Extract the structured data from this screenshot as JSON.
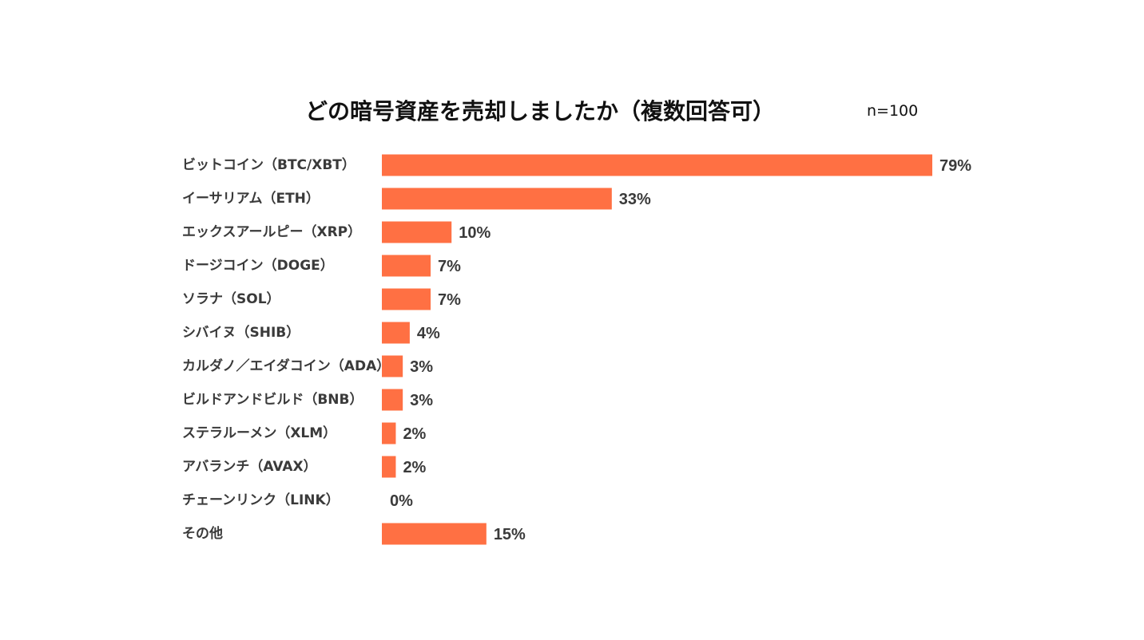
{
  "chart_data": {
    "type": "bar",
    "orientation": "horizontal",
    "title": "どの暗号資産を売却しましたか（複数回答可）",
    "sample_size": "n=100",
    "bar_color": "#FF7043",
    "label_color": "#3a3a3a",
    "value_suffix": "%",
    "xlim": [
      0,
      79
    ],
    "categories": [
      "ビットコイン（BTC/XBT）",
      "イーサリアム（ETH）",
      "エックスアールピー（XRP）",
      "ドージコイン（DOGE）",
      "ソラナ（SOL）",
      "シバイヌ（SHIB）",
      "カルダノ／エイダコイン（ADA）",
      "ビルドアンドビルド（BNB）",
      "ステラルーメン（XLM）",
      "アバランチ（AVAX）",
      "チェーンリンク（LINK）",
      "その他"
    ],
    "values": [
      79,
      33,
      10,
      7,
      7,
      4,
      3,
      3,
      2,
      2,
      0,
      15
    ],
    "value_labels": [
      "79%",
      "33%",
      "10%",
      "7%",
      "7%",
      "4%",
      "3%",
      "3%",
      "2%",
      "2%",
      "0%",
      "15%"
    ]
  }
}
